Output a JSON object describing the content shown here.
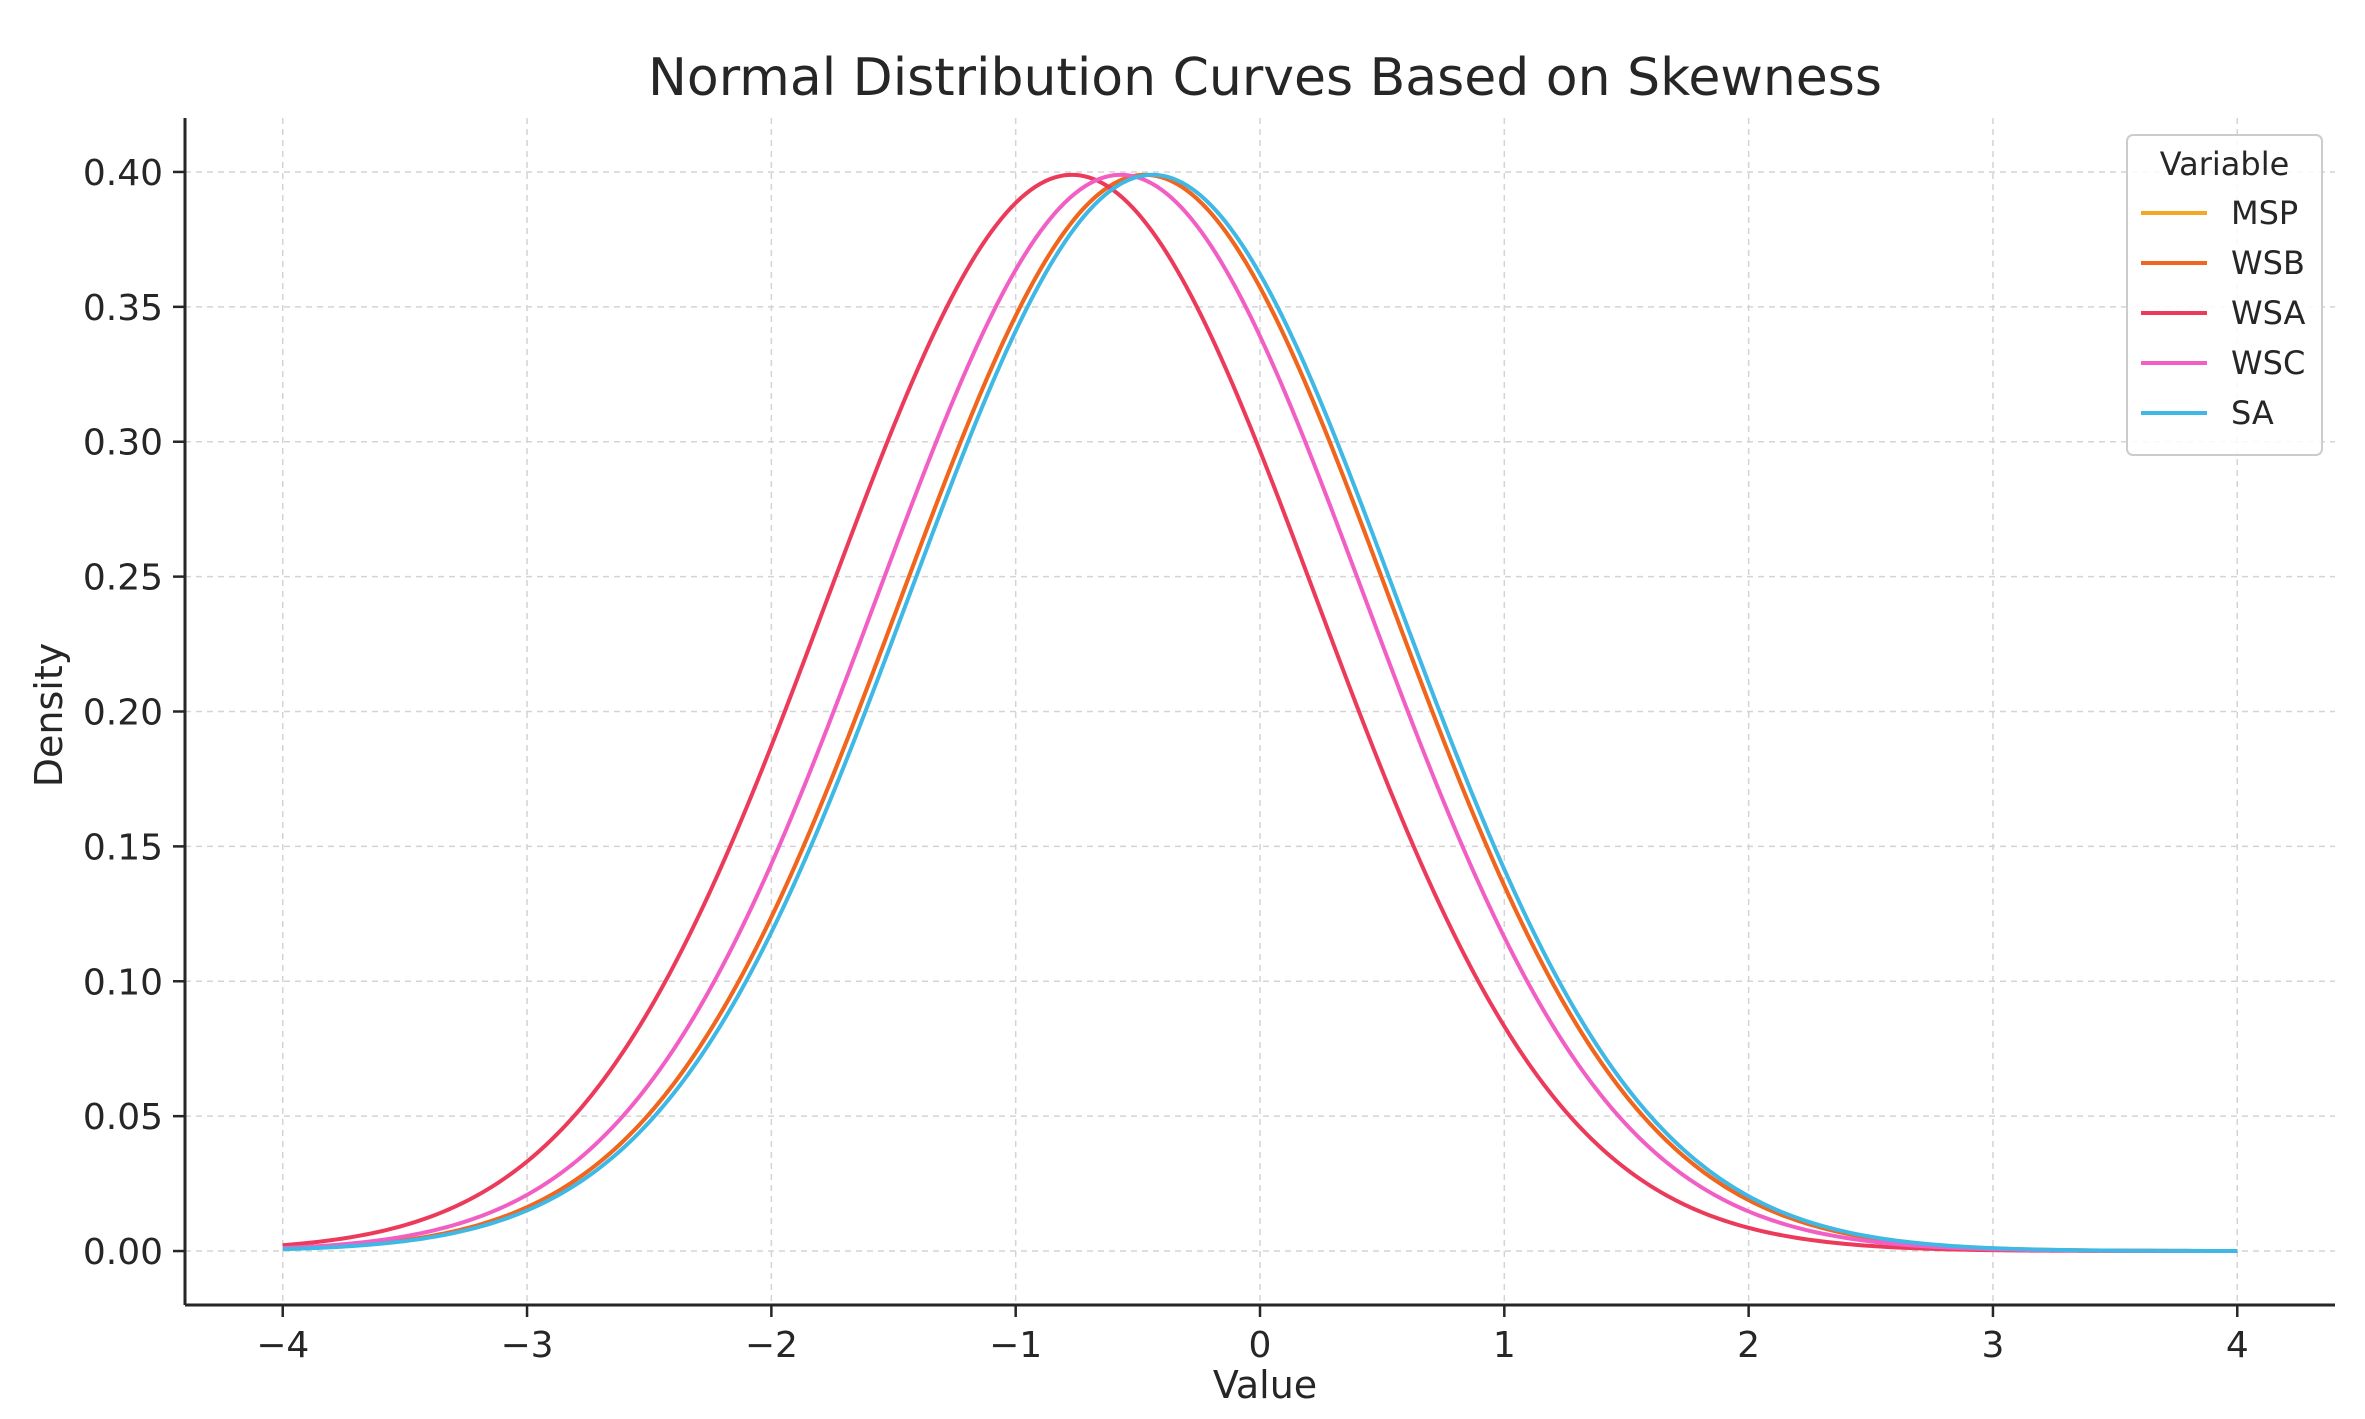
{
  "chart_data": {
    "type": "line",
    "title": "Normal Distribution Curves Based on Skewness",
    "xlabel": "Value",
    "ylabel": "Density",
    "xlim": [
      -4.4,
      4.4
    ],
    "ylim": [
      -0.02,
      0.42
    ],
    "x_ticks": [
      -4,
      -3,
      -2,
      -1,
      0,
      1,
      2,
      3,
      4
    ],
    "x_tick_labels": [
      "−4",
      "−3",
      "−2",
      "−1",
      "0",
      "1",
      "2",
      "3",
      "4"
    ],
    "y_ticks": [
      0.0,
      0.05,
      0.1,
      0.15,
      0.2,
      0.25,
      0.3,
      0.35,
      0.4
    ],
    "y_tick_labels": [
      "0.00",
      "0.05",
      "0.10",
      "0.15",
      "0.20",
      "0.25",
      "0.30",
      "0.35",
      "0.40"
    ],
    "grid": true,
    "x_range": [
      -4,
      4
    ],
    "legend": {
      "title": "Variable",
      "placement": "top-right"
    },
    "series": [
      {
        "name": "MSP",
        "color": "#f5a623",
        "mean": -0.47,
        "sd": 1.0
      },
      {
        "name": "WSB",
        "color": "#f0651f",
        "mean": -0.47,
        "sd": 1.0
      },
      {
        "name": "WSA",
        "color": "#ec3a5a",
        "mean": -0.77,
        "sd": 1.0
      },
      {
        "name": "WSC",
        "color": "#f25fc4",
        "mean": -0.57,
        "sd": 1.0
      },
      {
        "name": "SA",
        "color": "#3fb8e6",
        "mean": -0.44,
        "sd": 1.0
      }
    ]
  }
}
